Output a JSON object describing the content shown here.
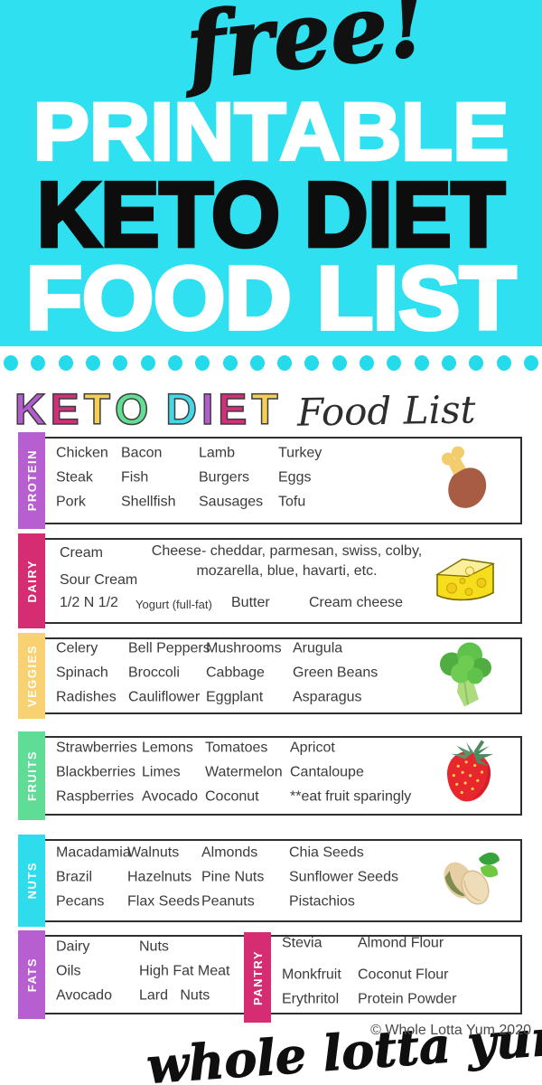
{
  "banner": {
    "bg_color": "#2EE0F0",
    "script_word": "free!",
    "line1": "PRINTABLE",
    "line2": "KETO DIET",
    "line3": "FOOD LIST"
  },
  "dots": {
    "count": 20,
    "color": "#25DAEA"
  },
  "header": {
    "title_letters": [
      {
        "ch": "K",
        "color": "#B45CCE"
      },
      {
        "ch": "E",
        "color": "#D22E79"
      },
      {
        "ch": "T",
        "color": "#F3CF55"
      },
      {
        "ch": "O",
        "color": "#63DE92"
      },
      {
        "ch": " ",
        "color": ""
      },
      {
        "ch": "D",
        "color": "#45D7E8"
      },
      {
        "ch": "I",
        "color": "#B45CCE"
      },
      {
        "ch": "E",
        "color": "#D22E79"
      },
      {
        "ch": "T",
        "color": "#F3CF55"
      }
    ],
    "subtitle": "Food List"
  },
  "sections": [
    {
      "label": "PROTEIN",
      "tab_color": "#B75FD1",
      "icon": "drumstick-icon",
      "columns": [
        [
          "Chicken",
          "Steak",
          "Pork"
        ],
        [
          "Bacon",
          "Fish",
          "Shellfish"
        ],
        [
          "Lamb",
          "Burgers",
          "Sausages"
        ],
        [
          "Turkey",
          "Eggs",
          "Tofu"
        ]
      ]
    },
    {
      "label": "DAIRY",
      "tab_color": "#D52C72",
      "icon": "cheese-icon",
      "left_column": [
        "Cream",
        "Sour Cream",
        "1/2 N 1/2"
      ],
      "note_line1": "Cheese- cheddar, parmesan, swiss, colby,",
      "note_line2": "mozarella, blue, havarti, etc.",
      "bottom_row": [
        "Yogurt (full-fat)",
        "Butter",
        "Cream cheese"
      ]
    },
    {
      "label": "VEGGIES",
      "tab_color": "#F8D272",
      "icon": "broccoli-icon",
      "columns": [
        [
          "Celery",
          "Spinach",
          "Radishes"
        ],
        [
          "Bell Peppers",
          "Broccoli",
          "Cauliflower"
        ],
        [
          "Mushrooms",
          "Cabbage",
          "Eggplant"
        ],
        [
          "Arugula",
          "Green Beans",
          "Asparagus"
        ]
      ]
    },
    {
      "label": "FRUITS",
      "tab_color": "#5FDC95",
      "icon": "strawberry-icon",
      "columns": [
        [
          "Strawberries",
          "Blackberries",
          "Raspberries"
        ],
        [
          "Lemons",
          "Limes",
          "Avocado"
        ],
        [
          "Tomatoes",
          "Watermelon",
          "Coconut"
        ],
        [
          "Apricot",
          "Cantaloupe",
          "**eat fruit sparingly"
        ]
      ]
    },
    {
      "label": "NUTS",
      "tab_color": "#2EDCEC",
      "icon": "pistachio-icon",
      "columns": [
        [
          "Macadamia",
          "Brazil",
          "Pecans"
        ],
        [
          "Walnuts",
          "Hazelnuts",
          "Flax Seeds"
        ],
        [
          "Almonds",
          "Pine Nuts",
          "Peanuts"
        ],
        [
          "Chia Seeds",
          "Sunflower Seeds",
          "Pistachios"
        ]
      ]
    },
    {
      "label": "FATS",
      "tab_color": "#B75FD1",
      "icon": "",
      "columns": [
        [
          "Dairy",
          "Oils",
          "Avocado"
        ],
        [
          "Nuts",
          "High Fat Meat",
          "Lard   Nuts"
        ]
      ]
    },
    {
      "label": "PANTRY",
      "tab_color": "#D52C72",
      "icon": "",
      "columns": [
        [
          "Stevia",
          "Monkfruit",
          "Erythritol"
        ],
        [
          "Almond Flour",
          "Coconut Flour",
          "Protein Powder"
        ]
      ]
    }
  ],
  "footer": {
    "brand_script": "whole lotta yum",
    "copyright": "© Whole Lotta Yum 2020"
  }
}
